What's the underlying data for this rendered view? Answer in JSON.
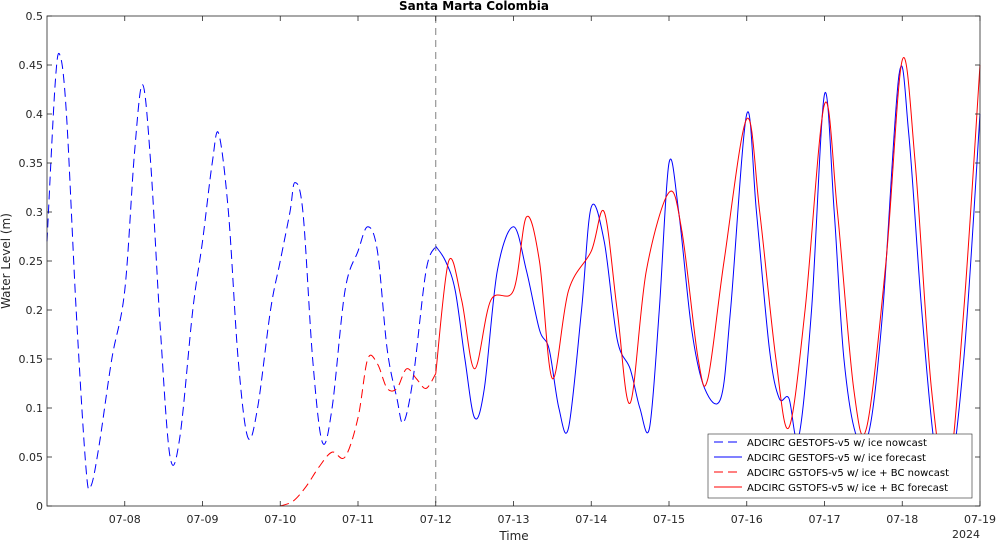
{
  "chart_data": {
    "type": "line",
    "title": "Santa Marta Colombia",
    "xlabel": "Time",
    "ylabel": "Water Level (m)",
    "year_label": "2024",
    "xlim": [
      "07-07",
      "07-19"
    ],
    "ylim": [
      0,
      0.5
    ],
    "xticks": [
      "07-08",
      "07-09",
      "07-10",
      "07-11",
      "07-12",
      "07-13",
      "07-14",
      "07-15",
      "07-16",
      "07-17",
      "07-18",
      "07-19"
    ],
    "yticks": [
      "0",
      "0.05",
      "0.1",
      "0.15",
      "0.2",
      "0.25",
      "0.3",
      "0.35",
      "0.4",
      "0.45",
      "0.5"
    ],
    "nowcast_forecast_divider": "07-12",
    "grid": false,
    "legend_position": "bottom-right",
    "series": [
      {
        "name": "ADCIRC GESTOFS-v5 w/ ice nowcast",
        "color": "#0000ff",
        "style": "dashed",
        "points": [
          [
            "07-07 00:00",
            0.27
          ],
          [
            "07-07 02:30",
            0.43
          ],
          [
            "07-07 04:00",
            0.46
          ],
          [
            "07-07 06:00",
            0.4
          ],
          [
            "07-07 09:00",
            0.2
          ],
          [
            "07-07 12:00",
            0.04
          ],
          [
            "07-07 13:30",
            0.02
          ],
          [
            "07-07 16:00",
            0.06
          ],
          [
            "07-07 20:00",
            0.15
          ],
          [
            "07-08 00:00",
            0.22
          ],
          [
            "07-08 03:00",
            0.36
          ],
          [
            "07-08 05:30",
            0.43
          ],
          [
            "07-08 08:00",
            0.35
          ],
          [
            "07-08 11:00",
            0.18
          ],
          [
            "07-08 14:00",
            0.05
          ],
          [
            "07-08 17:00",
            0.07
          ],
          [
            "07-08 21:00",
            0.2
          ],
          [
            "07-09 00:00",
            0.27
          ],
          [
            "07-09 03:00",
            0.35
          ],
          [
            "07-09 05:00",
            0.38
          ],
          [
            "07-09 08:00",
            0.3
          ],
          [
            "07-09 11:00",
            0.15
          ],
          [
            "07-09 14:00",
            0.07
          ],
          [
            "07-09 17:00",
            0.1
          ],
          [
            "07-09 21:00",
            0.2
          ],
          [
            "07-10 00:00",
            0.25
          ],
          [
            "07-10 03:00",
            0.3
          ],
          [
            "07-10 04:30",
            0.33
          ],
          [
            "07-10 07:00",
            0.3
          ],
          [
            "07-10 10:00",
            0.15
          ],
          [
            "07-10 13:00",
            0.065
          ],
          [
            "07-10 16:00",
            0.1
          ],
          [
            "07-10 20:00",
            0.22
          ],
          [
            "07-11 00:00",
            0.26
          ],
          [
            "07-11 03:00",
            0.285
          ],
          [
            "07-11 06:00",
            0.26
          ],
          [
            "07-11 09:00",
            0.16
          ],
          [
            "07-11 12:00",
            0.11
          ],
          [
            "07-11 14:00",
            0.085
          ],
          [
            "07-11 17:00",
            0.13
          ],
          [
            "07-11 21:00",
            0.24
          ],
          [
            "07-12 00:00",
            0.265
          ]
        ]
      },
      {
        "name": "ADCIRC GESTOFS-v5 w/ ice forecast",
        "color": "#0000ff",
        "style": "solid",
        "points": [
          [
            "07-12 00:00",
            0.265
          ],
          [
            "07-12 03:00",
            0.25
          ],
          [
            "07-12 06:00",
            0.22
          ],
          [
            "07-12 09:00",
            0.15
          ],
          [
            "07-12 12:00",
            0.09
          ],
          [
            "07-12 15:00",
            0.12
          ],
          [
            "07-12 19:00",
            0.24
          ],
          [
            "07-13 00:00",
            0.285
          ],
          [
            "07-13 04:00",
            0.24
          ],
          [
            "07-13 08:00",
            0.18
          ],
          [
            "07-13 11:00",
            0.16
          ],
          [
            "07-13 14:00",
            0.1
          ],
          [
            "07-13 17:00",
            0.08
          ],
          [
            "07-13 21:00",
            0.2
          ],
          [
            "07-14 00:00",
            0.305
          ],
          [
            "07-14 04:00",
            0.27
          ],
          [
            "07-14 08:00",
            0.17
          ],
          [
            "07-14 12:00",
            0.14
          ],
          [
            "07-14 15:00",
            0.1
          ],
          [
            "07-14 18:00",
            0.08
          ],
          [
            "07-14 21:00",
            0.2
          ],
          [
            "07-15 00:00",
            0.35
          ],
          [
            "07-15 03:00",
            0.3
          ],
          [
            "07-15 07:00",
            0.18
          ],
          [
            "07-15 11:00",
            0.12
          ],
          [
            "07-15 16:00",
            0.11
          ],
          [
            "07-15 19:00",
            0.2
          ],
          [
            "07-16 00:00",
            0.4
          ],
          [
            "07-16 03:00",
            0.3
          ],
          [
            "07-16 07:00",
            0.16
          ],
          [
            "07-16 10:00",
            0.11
          ],
          [
            "07-16 13:00",
            0.11
          ],
          [
            "07-16 16:00",
            0.07
          ],
          [
            "07-16 20:00",
            0.2
          ],
          [
            "07-17 00:00",
            0.42
          ],
          [
            "07-17 03:00",
            0.3
          ],
          [
            "07-17 06:00",
            0.15
          ],
          [
            "07-17 10:00",
            0.07
          ],
          [
            "07-17 14:00",
            0.08
          ],
          [
            "07-17 18:00",
            0.2
          ],
          [
            "07-17 23:00",
            0.44
          ],
          [
            "07-18 02:00",
            0.38
          ],
          [
            "07-18 06:00",
            0.2
          ],
          [
            "07-18 10:00",
            0.06
          ],
          [
            "07-18 14:00",
            0.02
          ],
          [
            "07-18 19:00",
            0.15
          ],
          [
            "07-19 00:00",
            0.4
          ]
        ]
      },
      {
        "name": "ADCIRC GSTOFS-v5 w/ ice + BC nowcast",
        "color": "#ff0000",
        "style": "dashed",
        "points": [
          [
            "07-10 00:00",
            0.0
          ],
          [
            "07-10 04:00",
            0.005
          ],
          [
            "07-10 08:00",
            0.02
          ],
          [
            "07-10 12:00",
            0.04
          ],
          [
            "07-10 16:00",
            0.055
          ],
          [
            "07-10 20:00",
            0.05
          ],
          [
            "07-11 00:00",
            0.09
          ],
          [
            "07-11 03:00",
            0.15
          ],
          [
            "07-11 06:00",
            0.145
          ],
          [
            "07-11 09:00",
            0.12
          ],
          [
            "07-11 12:00",
            0.12
          ],
          [
            "07-11 15:00",
            0.14
          ],
          [
            "07-11 18:00",
            0.13
          ],
          [
            "07-11 21:00",
            0.12
          ],
          [
            "07-12 00:00",
            0.135
          ]
        ]
      },
      {
        "name": "ADCIRC GSTOFS-v5 w/ ice + BC forecast",
        "color": "#ff0000",
        "style": "solid",
        "points": [
          [
            "07-12 00:00",
            0.135
          ],
          [
            "07-12 04:00",
            0.25
          ],
          [
            "07-12 08:00",
            0.21
          ],
          [
            "07-12 12:00",
            0.14
          ],
          [
            "07-12 17:00",
            0.21
          ],
          [
            "07-13 00:00",
            0.22
          ],
          [
            "07-13 04:00",
            0.295
          ],
          [
            "07-13 08:00",
            0.25
          ],
          [
            "07-13 12:00",
            0.13
          ],
          [
            "07-13 17:00",
            0.22
          ],
          [
            "07-14 00:00",
            0.26
          ],
          [
            "07-14 04:00",
            0.3
          ],
          [
            "07-14 08:00",
            0.2
          ],
          [
            "07-14 12:00",
            0.105
          ],
          [
            "07-14 17:00",
            0.24
          ],
          [
            "07-15 00:00",
            0.32
          ],
          [
            "07-15 04:00",
            0.28
          ],
          [
            "07-15 09:00",
            0.15
          ],
          [
            "07-15 12:00",
            0.13
          ],
          [
            "07-15 17:00",
            0.25
          ],
          [
            "07-16 00:00",
            0.395
          ],
          [
            "07-16 04:00",
            0.3
          ],
          [
            "07-16 09:00",
            0.15
          ],
          [
            "07-16 13:00",
            0.08
          ],
          [
            "07-16 18:00",
            0.2
          ],
          [
            "07-17 00:00",
            0.41
          ],
          [
            "07-17 04:00",
            0.3
          ],
          [
            "07-17 09:00",
            0.12
          ],
          [
            "07-17 13:00",
            0.08
          ],
          [
            "07-17 19:00",
            0.25
          ],
          [
            "07-18 00:00",
            0.455
          ],
          [
            "07-18 04:00",
            0.35
          ],
          [
            "07-18 09:00",
            0.12
          ],
          [
            "07-18 14:00",
            0.03
          ],
          [
            "07-18 19:00",
            0.2
          ],
          [
            "07-19 00:00",
            0.45
          ]
        ]
      }
    ]
  }
}
